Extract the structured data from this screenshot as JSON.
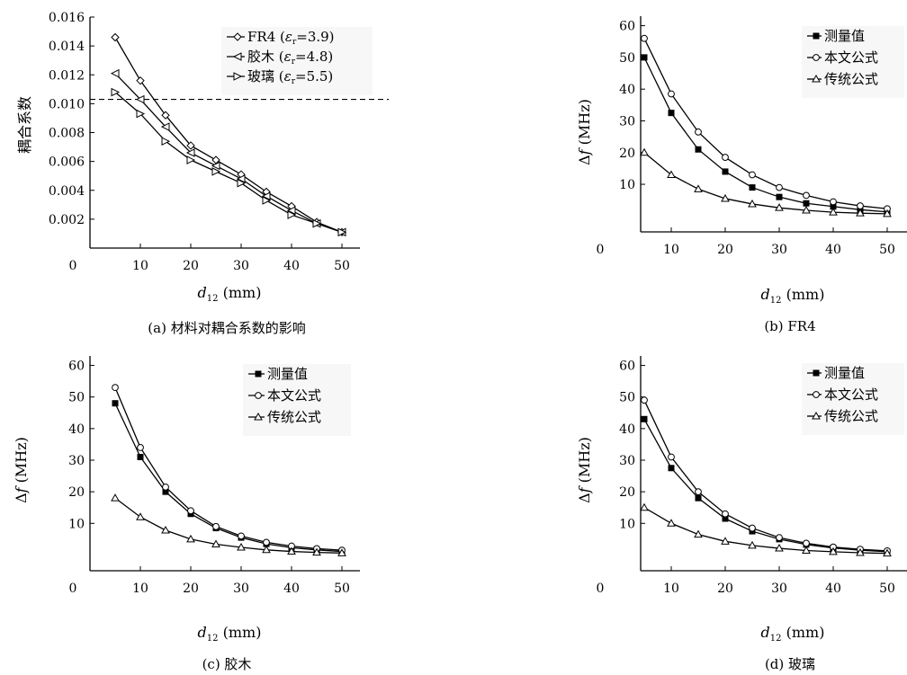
{
  "chart_data": [
    {
      "id": "a",
      "type": "line",
      "caption": "(a) 材料对耦合系数的影响",
      "xlabel": "d12 (mm)",
      "xlabel_var": "d",
      "xlabel_sub": "12",
      "xlabel_unit": " (mm)",
      "ylabel": "耦合系数",
      "xlim": [
        0,
        55
      ],
      "ylim": [
        0.0,
        0.016
      ],
      "xticks": [
        "0",
        "10",
        "20",
        "30",
        "40",
        "50"
      ],
      "yticks": [
        "0.002",
        "0.004",
        "0.006",
        "0.008",
        "0.010",
        "0.012",
        "0.014",
        "0.016"
      ],
      "x": [
        5,
        10,
        15,
        20,
        25,
        30,
        35,
        40,
        45,
        50
      ],
      "reference_line": 0.0103,
      "legend_position": "top-right",
      "series": [
        {
          "name": "FR4 (εr=3.9)",
          "label_main": "FR4 (",
          "label_eps": "ε",
          "label_sub": "r",
          "label_rest": "=3.9)",
          "marker": "diamond",
          "values": [
            0.0146,
            0.0116,
            0.0092,
            0.0071,
            0.0061,
            0.0051,
            0.0039,
            0.0029,
            0.0018,
            0.0011
          ]
        },
        {
          "name": "胶木 (εr=4.8)",
          "label_main": "胶木 (",
          "label_eps": "ε",
          "label_sub": "r",
          "label_rest": "=4.8)",
          "marker": "triangle-left",
          "values": [
            0.0121,
            0.0103,
            0.0084,
            0.0066,
            0.0057,
            0.0048,
            0.0036,
            0.0026,
            0.0017,
            0.0011
          ]
        },
        {
          "name": "玻璃 (εr=5.5)",
          "label_main": "玻璃 (",
          "label_eps": "ε",
          "label_sub": "r",
          "label_rest": "=5.5)",
          "marker": "triangle-right",
          "values": [
            0.0108,
            0.0093,
            0.0074,
            0.0061,
            0.0053,
            0.0045,
            0.0033,
            0.0023,
            0.0017,
            0.0011
          ]
        }
      ]
    },
    {
      "id": "b",
      "type": "line",
      "caption": "(b) FR4",
      "xlabel": "d12 (mm)",
      "xlabel_var": "d",
      "xlabel_sub": "12",
      "xlabel_unit": " (mm)",
      "ylabel": "Δf (MHz)",
      "ylabel_sym": "Δ",
      "ylabel_var": "f",
      "ylabel_unit": " (MHz)",
      "xlim": [
        0,
        55
      ],
      "ylim": [
        -5,
        63
      ],
      "xticks": [
        "0",
        "10",
        "20",
        "30",
        "40",
        "50"
      ],
      "yticks": [
        "10",
        "20",
        "30",
        "40",
        "50",
        "60"
      ],
      "x": [
        5,
        10,
        15,
        20,
        25,
        30,
        35,
        40,
        45,
        50
      ],
      "legend_position": "top-right",
      "series": [
        {
          "name": "测量值",
          "marker": "square-filled",
          "values": [
            50,
            32.5,
            21,
            14,
            9,
            6,
            4,
            3,
            2,
            1.3
          ]
        },
        {
          "name": "本文公式",
          "marker": "circle",
          "values": [
            56,
            38.5,
            26.5,
            18.5,
            13,
            9,
            6.5,
            4.5,
            3.2,
            2.3
          ]
        },
        {
          "name": "传统公式",
          "marker": "triangle-up",
          "values": [
            20,
            13,
            8.5,
            5.5,
            3.8,
            2.6,
            1.8,
            1.2,
            0.9,
            0.7
          ]
        }
      ]
    },
    {
      "id": "c",
      "type": "line",
      "caption": "(c) 胶木",
      "xlabel": "d12 (mm)",
      "xlabel_var": "d",
      "xlabel_sub": "12",
      "xlabel_unit": " (mm)",
      "ylabel": "Δf (MHz)",
      "ylabel_sym": "Δ",
      "ylabel_var": "f",
      "ylabel_unit": " (MHz)",
      "xlim": [
        0,
        55
      ],
      "ylim": [
        -5,
        63
      ],
      "xticks": [
        "0",
        "10",
        "20",
        "30",
        "40",
        "50"
      ],
      "yticks": [
        "10",
        "20",
        "30",
        "40",
        "50",
        "60"
      ],
      "x": [
        5,
        10,
        15,
        20,
        25,
        30,
        35,
        40,
        45,
        50
      ],
      "legend_position": "top-right",
      "series": [
        {
          "name": "测量值",
          "marker": "square-filled",
          "values": [
            48,
            31,
            20,
            13,
            8.5,
            5.5,
            3.5,
            2.3,
            1.6,
            1.1
          ]
        },
        {
          "name": "本文公式",
          "marker": "circle",
          "values": [
            53,
            34,
            21.5,
            14,
            9,
            6,
            4,
            2.8,
            2,
            1.5
          ]
        },
        {
          "name": "传统公式",
          "marker": "triangle-up",
          "values": [
            18,
            12,
            7.8,
            5,
            3.4,
            2.4,
            1.6,
            1.1,
            0.8,
            0.6
          ]
        }
      ]
    },
    {
      "id": "d",
      "type": "line",
      "caption": "(d) 玻璃",
      "xlabel": "d12 (mm)",
      "xlabel_var": "d",
      "xlabel_sub": "12",
      "xlabel_unit": " (mm)",
      "ylabel": "Δf (MHz)",
      "ylabel_sym": "Δ",
      "ylabel_var": "f",
      "ylabel_unit": " (MHz)",
      "xlim": [
        0,
        55
      ],
      "ylim": [
        -5,
        63
      ],
      "xticks": [
        "0",
        "10",
        "20",
        "30",
        "40",
        "50"
      ],
      "yticks": [
        "10",
        "20",
        "30",
        "40",
        "50",
        "60"
      ],
      "x": [
        5,
        10,
        15,
        20,
        25,
        30,
        35,
        40,
        45,
        50
      ],
      "legend_position": "top-right",
      "series": [
        {
          "name": "测量值",
          "marker": "square-filled",
          "values": [
            43,
            27.5,
            18,
            11.5,
            7.5,
            5,
            3.3,
            2.2,
            1.5,
            1
          ]
        },
        {
          "name": "本文公式",
          "marker": "circle",
          "values": [
            49,
            31,
            20,
            13,
            8.5,
            5.5,
            3.7,
            2.5,
            1.8,
            1.3
          ]
        },
        {
          "name": "传统公式",
          "marker": "triangle-up",
          "values": [
            15,
            10,
            6.5,
            4.3,
            3,
            2.1,
            1.4,
            1,
            0.7,
            0.5
          ]
        }
      ]
    }
  ]
}
